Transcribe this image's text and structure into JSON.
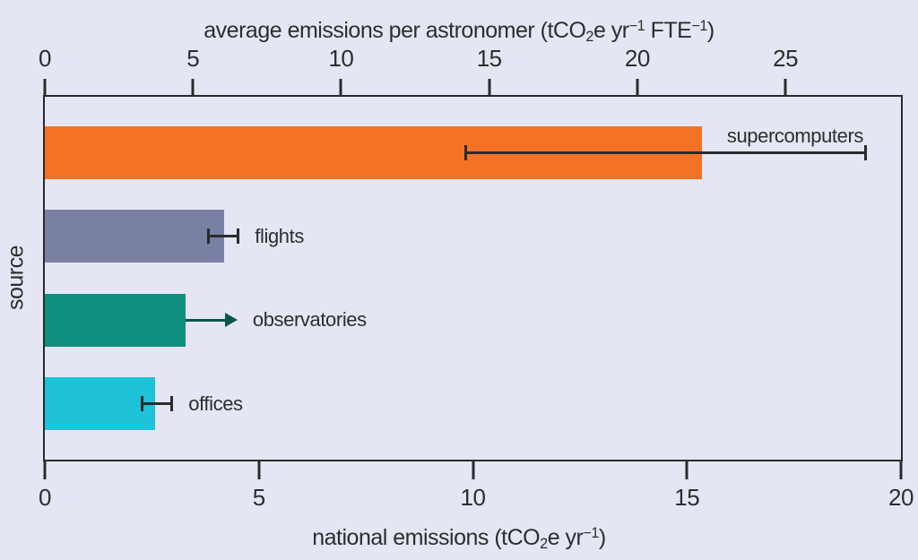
{
  "figure": {
    "background_color": "#e4e7f3",
    "frame_color": "#2b2b2b",
    "text_color": "#2d2d2d"
  },
  "chart_data": {
    "type": "bar",
    "orientation": "horizontal",
    "ylabel": "source",
    "axes": {
      "top": {
        "title_plain": "average emissions per astronomer (tCO2e yr-1 FTE-1)",
        "title_segments": [
          {
            "t": "average emissions per astronomer (tCO"
          },
          {
            "t": "2",
            "s": "sub"
          },
          {
            "t": "e yr"
          },
          {
            "t": "−1",
            "s": "sup"
          },
          {
            "t": " FTE"
          },
          {
            "t": "−1",
            "s": "sup"
          },
          {
            "t": ")"
          }
        ],
        "ticks": [
          0,
          5,
          10,
          15,
          20,
          25
        ],
        "range": [
          0,
          28.9
        ]
      },
      "bottom": {
        "title_plain": "national emissions (tCO2e yr-1)",
        "title_segments": [
          {
            "t": "national emissions (tCO"
          },
          {
            "t": "2",
            "s": "sub"
          },
          {
            "t": "e yr"
          },
          {
            "t": "−1",
            "s": "sup"
          },
          {
            "t": ")"
          }
        ],
        "ticks": [
          0,
          5,
          10,
          15,
          20
        ],
        "range": [
          0,
          20
        ]
      }
    },
    "bars": [
      {
        "label": "supercomputers",
        "color": "#f37226",
        "national_value": 15.35,
        "national_err": [
          9.8,
          19.2
        ],
        "per_astronomer_value": 22.1,
        "per_astronomer_err": [
          14.1,
          27.7
        ],
        "marker": "errorbar",
        "label_position": "above-bar-end"
      },
      {
        "label": "flights",
        "color": "#7a80a4",
        "national_value": 4.19,
        "national_err": [
          3.8,
          4.55
        ],
        "per_astronomer_value": 6.0,
        "per_astronomer_err": [
          5.5,
          6.55
        ],
        "marker": "errorbar",
        "label_position": "right-of-marker"
      },
      {
        "label": "observatories",
        "color": "#0f8f7d",
        "national_value": 3.29,
        "national_arrow_to": 4.5,
        "per_astronomer_value": 4.7,
        "per_astronomer_lower_limit": true,
        "arrow_color": "#0a564c",
        "marker": "arrow",
        "label_position": "right-of-marker"
      },
      {
        "label": "offices",
        "color": "#1ec3d9",
        "national_value": 2.58,
        "national_err": [
          2.25,
          3.0
        ],
        "per_astronomer_value": 3.7,
        "per_astronomer_err": [
          3.2,
          4.3
        ],
        "marker": "errorbar",
        "label_position": "right-of-marker"
      }
    ]
  }
}
